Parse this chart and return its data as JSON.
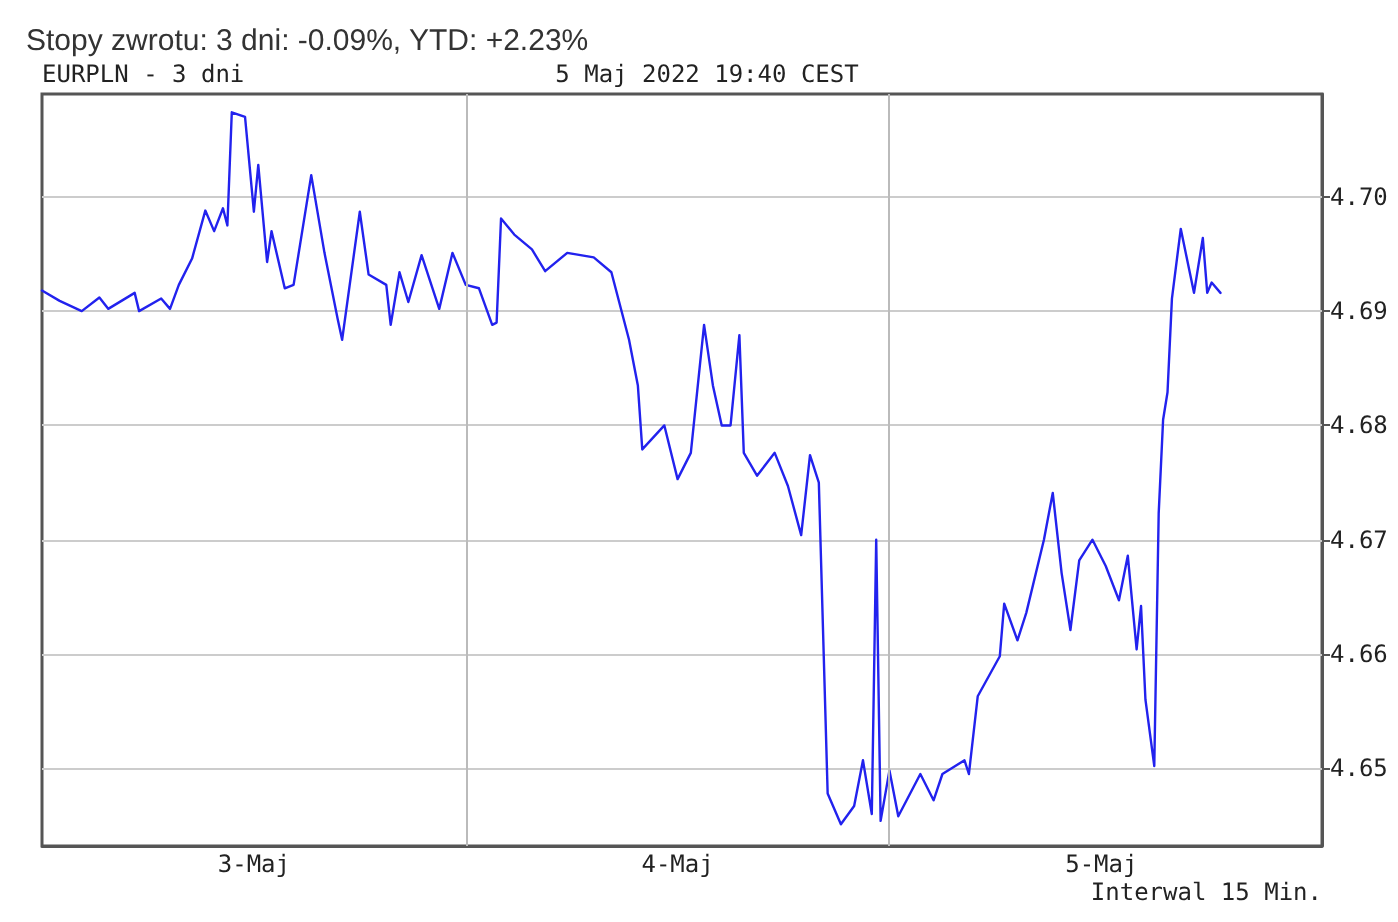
{
  "chart_data": {
    "type": "line",
    "title": "Stopy zwrotu: 3 dni: -0.09%, YTD: +2.23%",
    "subtitle": "EURPLN - 3 dni",
    "annotations": [
      "5 Maj 2022 19:40 CEST",
      "Interwal 15 Min."
    ],
    "x": [
      "2022-05-03T00:00",
      "2022-05-03T01:00",
      "2022-05-03T02:15",
      "2022-05-03T03:15",
      "2022-05-03T03:45",
      "2022-05-03T05:15",
      "2022-05-03T05:30",
      "2022-05-03T06:45",
      "2022-05-03T07:15",
      "2022-05-03T07:45",
      "2022-05-03T08:30",
      "2022-05-03T09:15",
      "2022-05-03T09:45",
      "2022-05-03T10:15",
      "2022-05-03T10:30",
      "2022-05-03T10:45",
      "2022-05-03T11:30",
      "2022-05-03T12:00",
      "2022-05-03T12:15",
      "2022-05-03T12:45",
      "2022-05-03T13:00",
      "2022-05-03T13:45",
      "2022-05-03T14:15",
      "2022-05-03T15:15",
      "2022-05-03T16:00",
      "2022-05-03T16:45",
      "2022-05-03T17:00",
      "2022-05-03T18:00",
      "2022-05-03T18:30",
      "2022-05-03T19:30",
      "2022-05-03T19:45",
      "2022-05-03T20:15",
      "2022-05-03T20:45",
      "2022-05-03T21:30",
      "2022-05-03T22:30",
      "2022-05-03T23:15",
      "2022-05-04T00:00",
      "2022-05-04T00:45",
      "2022-05-04T01:30",
      "2022-05-04T01:45",
      "2022-05-04T02:00",
      "2022-05-04T02:45",
      "2022-05-04T03:45",
      "2022-05-04T04:30",
      "2022-05-04T05:45",
      "2022-05-04T07:15",
      "2022-05-04T08:15",
      "2022-05-04T09:15",
      "2022-05-04T09:45",
      "2022-05-04T10:00",
      "2022-05-04T11:15",
      "2022-05-04T12:00",
      "2022-05-04T12:45",
      "2022-05-04T13:30",
      "2022-05-04T14:00",
      "2022-05-04T14:30",
      "2022-05-04T15:00",
      "2022-05-04T15:30",
      "2022-05-04T15:45",
      "2022-05-04T16:30",
      "2022-05-04T17:30",
      "2022-05-04T18:15",
      "2022-05-04T19:00",
      "2022-05-04T19:30",
      "2022-05-04T20:00",
      "2022-05-04T20:30",
      "2022-05-04T21:15",
      "2022-05-04T22:00",
      "2022-05-04T22:30",
      "2022-05-04T23:00",
      "2022-05-04T23:15",
      "2022-05-04T23:30",
      "2022-05-05T00:00",
      "2022-05-05T00:30",
      "2022-05-05T01:45",
      "2022-05-05T02:30",
      "2022-05-05T03:00",
      "2022-05-05T04:15",
      "2022-05-05T04:30",
      "2022-05-05T05:00",
      "2022-05-05T06:15",
      "2022-05-05T06:30",
      "2022-05-05T07:15",
      "2022-05-05T07:45",
      "2022-05-05T08:45",
      "2022-05-05T09:15",
      "2022-05-05T09:45",
      "2022-05-05T10:15",
      "2022-05-05T10:45",
      "2022-05-05T11:30",
      "2022-05-05T12:15",
      "2022-05-05T13:00",
      "2022-05-05T13:30",
      "2022-05-05T14:00",
      "2022-05-05T14:15",
      "2022-05-05T14:30",
      "2022-05-05T15:00",
      "2022-05-05T15:15",
      "2022-05-05T15:30",
      "2022-05-05T15:45",
      "2022-05-05T16:00",
      "2022-05-05T16:30",
      "2022-05-05T17:15",
      "2022-05-05T17:45",
      "2022-05-05T18:00",
      "2022-05-05T18:15",
      "2022-05-05T18:45"
    ],
    "series": [
      {
        "color": "#2222ee",
        "values": [
          4.6918,
          4.6909,
          4.69,
          4.6912,
          4.6902,
          4.6916,
          4.69,
          4.6911,
          4.6902,
          4.6923,
          4.6946,
          4.6988,
          4.697,
          4.699,
          4.6975,
          4.7074,
          4.707,
          4.6987,
          4.7028,
          4.6943,
          4.697,
          4.692,
          4.6923,
          4.7019,
          4.6951,
          4.6893,
          4.6875,
          4.6987,
          4.6932,
          4.6923,
          4.6888,
          4.6934,
          4.6908,
          4.6949,
          4.6902,
          4.6951,
          4.6923,
          4.692,
          4.6888,
          4.689,
          4.6981,
          4.6967,
          4.6954,
          4.6935,
          4.6951,
          4.6947,
          4.6934,
          4.6875,
          4.6835,
          4.6779,
          4.68,
          4.6753,
          4.6776,
          4.6888,
          4.6835,
          4.68,
          4.68,
          4.6879,
          4.6776,
          4.6756,
          4.6776,
          4.6747,
          4.6704,
          4.6774,
          4.675,
          4.6478,
          4.6451,
          4.6467,
          4.6507,
          4.646,
          4.67,
          4.6454,
          4.6498,
          4.6458,
          4.6495,
          4.6472,
          4.6495,
          4.6507,
          4.6495,
          4.6563,
          4.6598,
          4.6644,
          4.6612,
          4.6636,
          4.67,
          4.6741,
          4.6671,
          4.6621,
          4.6682,
          4.67,
          4.6677,
          4.6647,
          4.6686,
          4.6604,
          4.6642,
          4.656,
          4.6502,
          4.6723,
          4.6805,
          4.6829,
          4.6911,
          4.6972,
          4.6916,
          4.6964,
          4.6916,
          4.6925,
          4.6916
        ]
      }
    ],
    "xlim": [
      "2022-05-03T00:00",
      "2022-05-06T00:30"
    ],
    "xticks": [
      {
        "value": "2022-05-03T12:00",
        "label": "3-Maj"
      },
      {
        "value": "2022-05-04T12:00",
        "label": "4-Maj"
      },
      {
        "value": "2022-05-05T12:00",
        "label": "5-Maj"
      }
    ],
    "ylim": [
      4.6432,
      4.709
    ],
    "yticks": [
      {
        "value": 4.65,
        "label": "4.65"
      },
      {
        "value": 4.66,
        "label": "4.66"
      },
      {
        "value": 4.67,
        "label": "4.67"
      },
      {
        "value": 4.68,
        "label": "4.68"
      },
      {
        "value": 4.69,
        "label": "4.69"
      },
      {
        "value": 4.7,
        "label": "4.70"
      }
    ],
    "ref_lines": [
      {
        "axis": "x",
        "value": "2022-05-04T00:00",
        "color": "#bbbbbb"
      },
      {
        "axis": "x",
        "value": "2022-05-05T00:00",
        "color": "#bbbbbb"
      }
    ],
    "grid": "y",
    "marker": "none",
    "line_style": "solid"
  }
}
